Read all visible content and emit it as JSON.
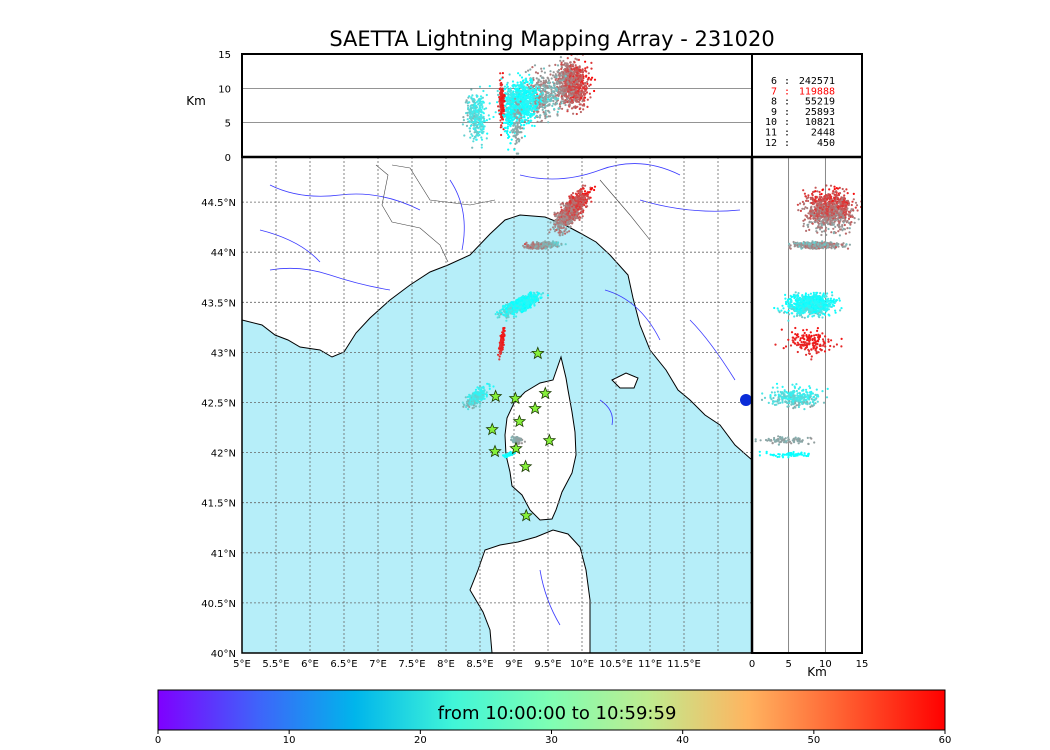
{
  "chart_data": {
    "type": "scatter",
    "title": "SAETTA Lightning Mapping Array - 231020",
    "colors": {
      "sea": "#b6eef9",
      "land": "#ffffff",
      "rivers": "#3a3aff",
      "grid": "#666666",
      "station_marker": "#86f03a"
    },
    "map": {
      "xlim": [
        5,
        12.5
      ],
      "ylim": [
        40,
        44.95
      ],
      "xticks": [
        "5°E",
        "5.5°E",
        "6°E",
        "6.5°E",
        "7°E",
        "7.5°E",
        "8°E",
        "8.5°E",
        "9°E",
        "9.5°E",
        "10°E",
        "10.5°E",
        "11°E",
        "11.5°E"
      ],
      "yticks": [
        "40°N",
        "40.5°N",
        "41°N",
        "41.5°N",
        "42°N",
        "42.5°N",
        "43°N",
        "43.5°N",
        "44°N",
        "44.5°N"
      ],
      "grid": "dotted",
      "stations": [
        {
          "lon": 9.35,
          "lat": 42.99
        },
        {
          "lon": 8.73,
          "lat": 42.56
        },
        {
          "lon": 9.02,
          "lat": 42.54
        },
        {
          "lon": 9.46,
          "lat": 42.59
        },
        {
          "lon": 9.31,
          "lat": 42.44
        },
        {
          "lon": 9.08,
          "lat": 42.31
        },
        {
          "lon": 8.68,
          "lat": 42.23
        },
        {
          "lon": 9.52,
          "lat": 42.12
        },
        {
          "lon": 8.72,
          "lat": 42.01
        },
        {
          "lon": 9.03,
          "lat": 42.04
        },
        {
          "lon": 9.17,
          "lat": 41.86
        },
        {
          "lon": 9.18,
          "lat": 41.37
        }
      ]
    },
    "lon_alt_panel": {
      "ylabel": "Km",
      "ylim": [
        0,
        15
      ],
      "yticks": [
        "0",
        "5",
        "10",
        "15"
      ]
    },
    "alt_lat_panel": {
      "xlabel": "Km",
      "xlim": [
        0,
        15
      ],
      "xticks": [
        "0",
        "5",
        "10",
        "15"
      ]
    },
    "clusters": [
      {
        "lon": 9.85,
        "lat": 44.42,
        "w_lon": 0.35,
        "w_lat": 0.22,
        "alt": 10.5,
        "t0": 45,
        "t1": 60,
        "angle": 55,
        "n": 900
      },
      {
        "lon": 9.4,
        "lat": 44.07,
        "w_lon": 0.25,
        "w_lat": 0.08,
        "alt": 9,
        "t0": 5,
        "t1": 20,
        "angle": 10,
        "n": 350
      },
      {
        "lon": 9.1,
        "lat": 43.48,
        "w_lon": 0.4,
        "w_lat": 0.12,
        "alt": 8,
        "t0": 15,
        "t1": 42,
        "angle": 55,
        "n": 800
      },
      {
        "lon": 8.82,
        "lat": 43.1,
        "w_lon": 0.07,
        "w_lat": 0.12,
        "alt": 8,
        "t0": 55,
        "t1": 60,
        "angle": 70,
        "n": 160
      },
      {
        "lon": 8.45,
        "lat": 42.55,
        "w_lon": 0.28,
        "w_lat": 0.1,
        "alt": 6,
        "t0": 12,
        "t1": 30,
        "angle": 65,
        "n": 300
      },
      {
        "lon": 9.05,
        "lat": 42.12,
        "w_lon": 0.08,
        "w_lat": 0.1,
        "alt": 5,
        "t0": 44,
        "t1": 49,
        "angle": 0,
        "n": 90
      },
      {
        "lon": 8.93,
        "lat": 41.98,
        "w_lon": 0.1,
        "w_lat": 0.04,
        "alt": 5,
        "t0": 26,
        "t1": 32,
        "angle": 35,
        "n": 60
      }
    ],
    "source_counts": [
      {
        "stations": "6",
        "count": "242571",
        "highlight": false
      },
      {
        "stations": "7",
        "count": "119888",
        "highlight": true
      },
      {
        "stations": "8",
        "count": "55219",
        "highlight": false
      },
      {
        "stations": "9",
        "count": "25893",
        "highlight": false
      },
      {
        "stations": "10",
        "count": "10821",
        "highlight": false
      },
      {
        "stations": "11",
        "count": "2448",
        "highlight": false
      },
      {
        "stations": "12",
        "count": "450",
        "highlight": false
      }
    ],
    "colorbar": {
      "label": "from 10:00:00 to 10:59:59",
      "range": [
        0,
        60
      ],
      "ticks": [
        "0",
        "10",
        "20",
        "30",
        "40",
        "50",
        "60"
      ]
    }
  }
}
